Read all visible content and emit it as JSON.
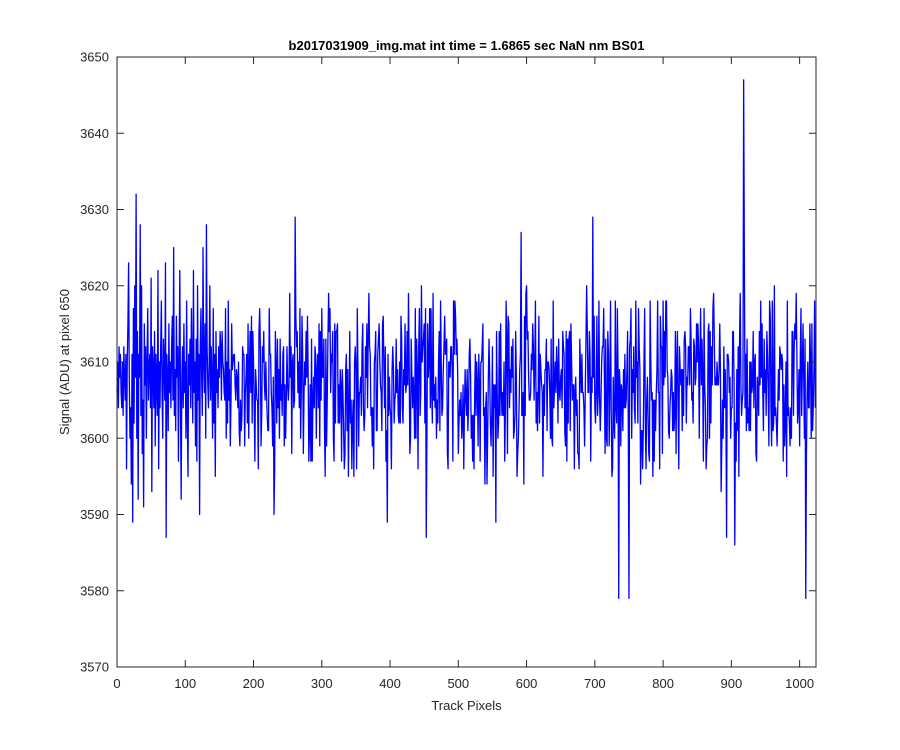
{
  "chart_data": {
    "type": "line",
    "title": "b2017031909_img.mat int time = 1.6865 sec  NaN nm BS01",
    "xlabel": "Track Pixels",
    "ylabel": "Signal (ADU) at pixel 650",
    "xlim": [
      0,
      1024
    ],
    "ylim": [
      3570,
      3650
    ],
    "xticks": [
      0,
      100,
      200,
      300,
      400,
      500,
      600,
      700,
      800,
      900,
      1000
    ],
    "yticks": [
      3570,
      3580,
      3590,
      3600,
      3610,
      3620,
      3630,
      3640,
      3650
    ],
    "grid": false,
    "legend": "none",
    "series": [
      {
        "color": "#0000ff",
        "x_start": 1,
        "x_step": 1,
        "values": [
          3606,
          3610,
          3604,
          3612,
          3608,
          3611,
          3606,
          3604,
          3610,
          3603,
          3612,
          3608,
          3605,
          3611,
          3596,
          3610,
          3615,
          3623,
          3608,
          3600,
          3604,
          3594,
          3611,
          3589,
          3617,
          3602,
          3620,
          3608,
          3632,
          3600,
          3614,
          3592,
          3611,
          3608,
          3628,
          3603,
          3620,
          3598,
          3605,
          3591,
          3615,
          3607,
          3612,
          3600,
          3610,
          3617,
          3605,
          3609,
          3611,
          3604,
          3621,
          3593,
          3612,
          3609,
          3604,
          3614,
          3599,
          3611,
          3607,
          3603,
          3622,
          3596,
          3610,
          3604,
          3612,
          3618,
          3606,
          3600,
          3613,
          3609,
          3605,
          3623,
          3587,
          3611,
          3608,
          3601,
          3615,
          3606,
          3610,
          3604,
          3612,
          3616,
          3605,
          3625,
          3603,
          3609,
          3601,
          3616,
          3608,
          3612,
          3597,
          3610,
          3622,
          3605,
          3592,
          3608,
          3612,
          3604,
          3615,
          3606,
          3610,
          3600,
          3618,
          3603,
          3595,
          3611,
          3607,
          3613,
          3604,
          3617,
          3609,
          3602,
          3622,
          3606,
          3610,
          3599,
          3613,
          3597,
          3620,
          3605,
          3611,
          3590,
          3612,
          3617,
          3608,
          3603,
          3625,
          3610,
          3606,
          3615,
          3600,
          3628,
          3612,
          3607,
          3604,
          3610,
          3620,
          3605,
          3612,
          3608,
          3600,
          3617,
          3602,
          3611,
          3595,
          3614,
          3606,
          3609,
          3604,
          3612
        ],
        "note_resample": false
      }
    ]
  }
}
